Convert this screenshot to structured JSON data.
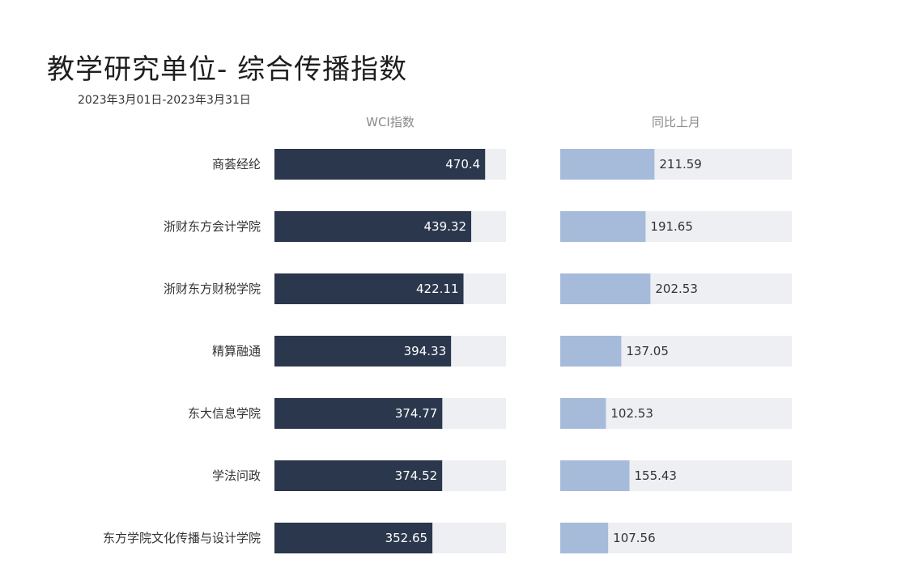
{
  "header": {
    "title": "教学研究单位- 综合传播指数",
    "date_range": "2023年3月01日-2023年3月31日"
  },
  "colors": {
    "wci_bar": "#2b374c",
    "mom_bar": "#a6bbda",
    "track": "#eeeff3",
    "wci_label": "#ffffff",
    "mom_label": "#333333",
    "category_label": "#333333"
  },
  "chart_data": {
    "type": "bar",
    "orientation": "horizontal",
    "categories": [
      "商荟经纶",
      "浙财东方会计学院",
      "浙财东方财税学院",
      "精算融通",
      "东大信息学院",
      "学法问政",
      "东方学院文化传播与设计学院"
    ],
    "series": [
      {
        "name": "WCI指数",
        "values": [
          470.4,
          439.32,
          422.11,
          394.33,
          374.77,
          374.52,
          352.65
        ],
        "value_labels": [
          "470.4",
          "439.32",
          "422.11",
          "394.33",
          "374.77",
          "374.52",
          "352.65"
        ],
        "xlim": [
          0,
          517
        ]
      },
      {
        "name": "同比上月",
        "values": [
          211.59,
          191.65,
          202.53,
          137.05,
          102.53,
          155.43,
          107.56
        ],
        "value_labels": [
          "211.59",
          "191.65",
          "202.53",
          "137.05",
          "102.53",
          "155.43",
          "107.56"
        ],
        "xlim": [
          0,
          520
        ]
      }
    ],
    "grid": false,
    "legend": "none"
  }
}
